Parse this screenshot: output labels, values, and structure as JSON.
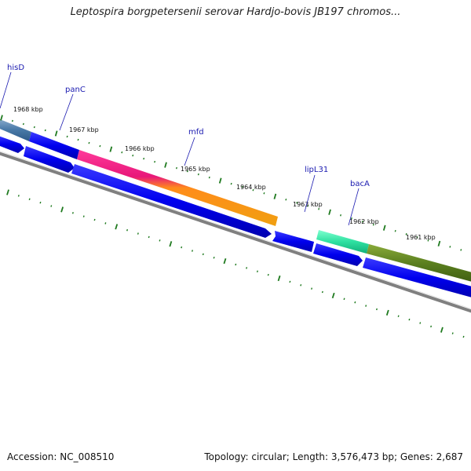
{
  "title": "Leptospira borgpetersenii serovar Hardjo-bovis JB197 chromos...",
  "footer": {
    "accession": "Accession: NC_008510",
    "summary": "Topology: circular; Length: 3,576,473 bp; Genes: 2,687"
  },
  "colors": {
    "cds_forward": "#0000ee",
    "backbone": "#808080",
    "ticks": "#1f7a1f",
    "label": "#1a1ab0"
  },
  "gene_labels": [
    "hisD",
    "panC",
    "mfd",
    "lipL31",
    "bacA"
  ],
  "kbp_labels": [
    "1968 kbp",
    "1967 kbp",
    "1966 kbp",
    "1965 kbp",
    "1964 kbp",
    "1963 kbp",
    "1962 kbp",
    "1961 kbp"
  ]
}
